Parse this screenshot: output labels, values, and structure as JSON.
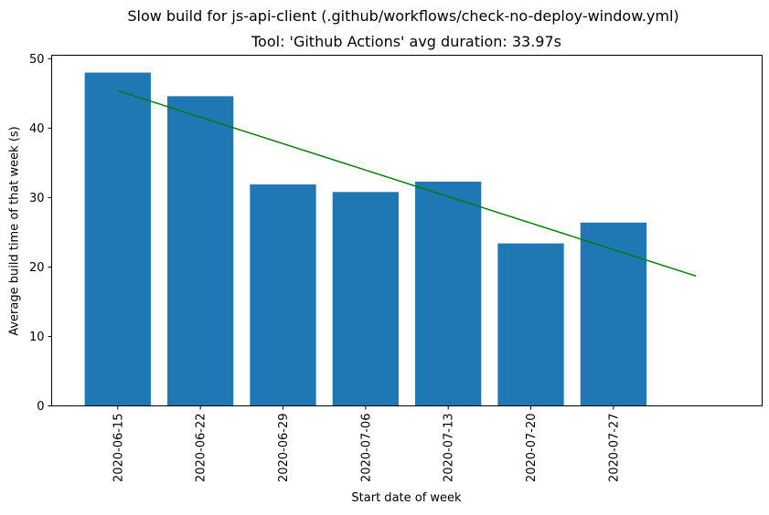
{
  "suptitle": "Slow build for js-api-client (.github/workflows/check-no-deploy-window.yml)",
  "chart_data": {
    "type": "bar",
    "title": "Tool: 'Github Actions' avg duration: 33.97s",
    "xlabel": "Start date of week",
    "ylabel": "Average build time of that week (s)",
    "categories": [
      "2020-06-15",
      "2020-06-22",
      "2020-06-29",
      "2020-07-06",
      "2020-07-13",
      "2020-07-20",
      "2020-07-27"
    ],
    "values": [
      48.0,
      44.6,
      31.9,
      30.8,
      32.3,
      23.4,
      26.4
    ],
    "ylim": [
      0,
      50.5
    ],
    "yticks": [
      0,
      10,
      20,
      30,
      40,
      50
    ],
    "bar_color": "#1f77b4",
    "trend_line": {
      "color": "#008000",
      "start": 45.4,
      "end": 18.7
    },
    "grid": false
  }
}
